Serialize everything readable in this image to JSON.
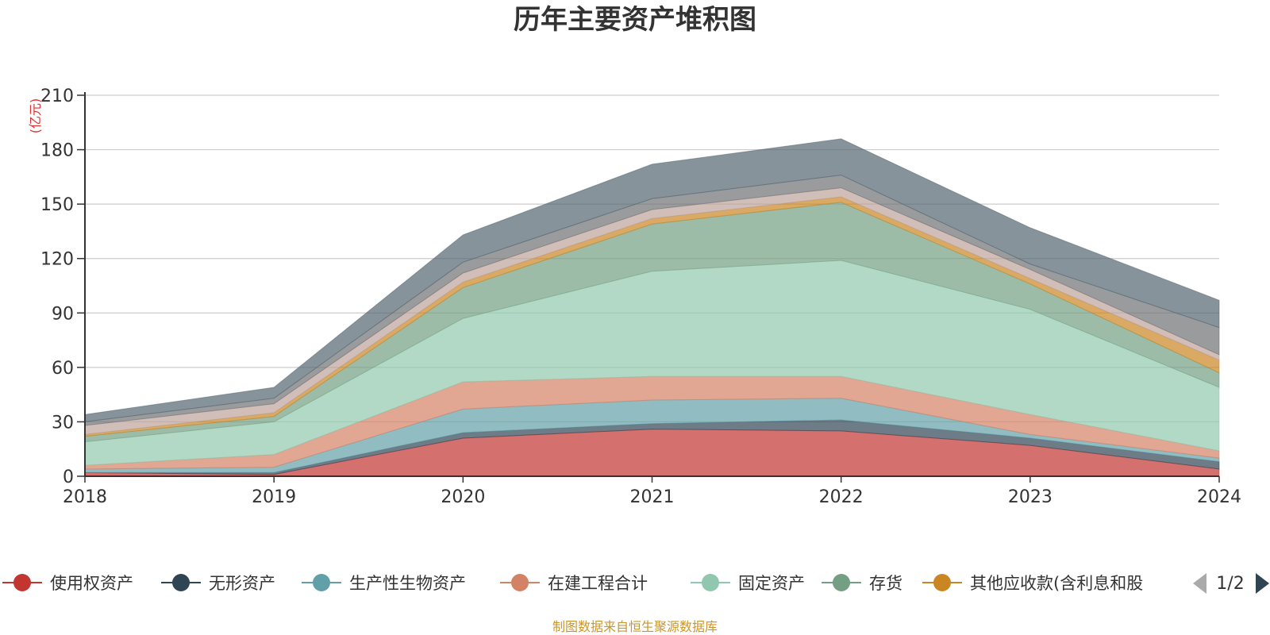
{
  "chart_data": {
    "type": "area",
    "stacked": true,
    "title": "历年主要资产堆积图",
    "unit": "(亿元)",
    "x": [
      "2018",
      "2019",
      "2020",
      "2021",
      "2022",
      "2023",
      "2024"
    ],
    "ylim": [
      0,
      210
    ],
    "yticks": [
      "0",
      "30",
      "60",
      "90",
      "120",
      "150",
      "180",
      "210"
    ],
    "grid": true,
    "series": [
      {
        "name": "使用权资产",
        "color": "#c23531",
        "values": [
          2,
          1,
          21,
          26,
          25,
          17,
          4
        ]
      },
      {
        "name": "无形资产",
        "color": "#2f4554",
        "values": [
          0,
          1,
          3,
          3,
          6,
          4,
          4
        ]
      },
      {
        "name": "生产性生物资产",
        "color": "#61a0a8",
        "values": [
          2,
          3,
          13,
          13,
          12,
          2,
          2
        ]
      },
      {
        "name": "在建工程合计",
        "color": "#d48265",
        "values": [
          2,
          7,
          15,
          13,
          12,
          11,
          4
        ]
      },
      {
        "name": "固定资产",
        "color": "#91c7ae",
        "values": [
          13,
          18,
          35,
          58,
          64,
          58,
          35
        ]
      },
      {
        "name": "存货",
        "color": "#749f83",
        "values": [
          3,
          3,
          17,
          26,
          32,
          14,
          8
        ]
      },
      {
        "name": "其他应收款(含利息和股利)",
        "color": "#ca8622",
        "values": [
          1,
          2,
          3,
          3,
          3,
          3,
          7
        ]
      },
      {
        "name": "",
        "color": "#bda29a",
        "values": [
          5,
          5,
          5,
          5,
          5,
          5,
          3
        ]
      },
      {
        "name": "",
        "color": "#6e7074",
        "values": [
          2,
          3,
          6,
          6,
          7,
          3,
          15
        ]
      },
      {
        "name": "",
        "color": "#546570",
        "values": [
          4,
          6,
          15,
          19,
          20,
          20,
          15
        ]
      }
    ],
    "legend": {
      "position": "bottom",
      "visible_items": [
        "使用权资产",
        "无形资产",
        "生产性生物资产",
        "在建工程合计",
        "固定资产",
        "存货",
        "其他应收款(含利息和股"
      ],
      "page": "1/2"
    },
    "source": "制图数据来自恒生聚源数据库"
  }
}
